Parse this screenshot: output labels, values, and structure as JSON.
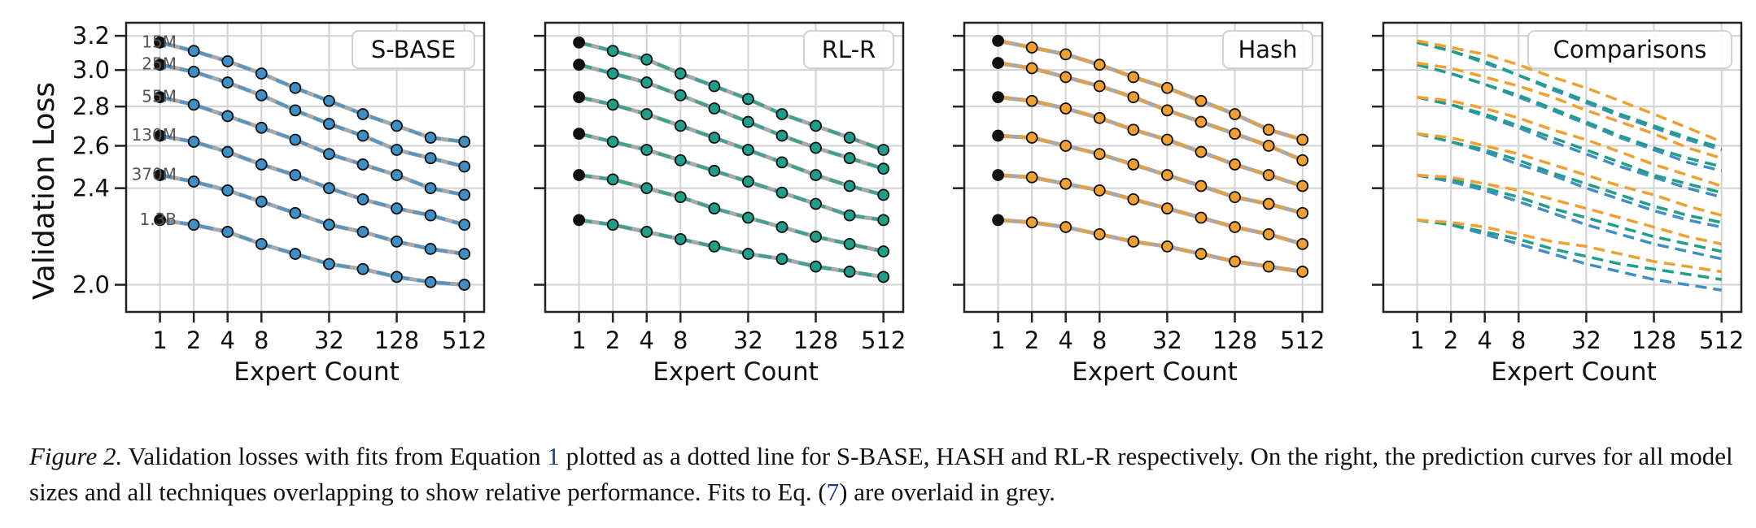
{
  "figure": {
    "ylabel": "Validation Loss",
    "xlabel": "Expert Count",
    "ytick_labels": [
      "2.0",
      "2.4",
      "2.6",
      "2.8",
      "3.0",
      "3.2"
    ],
    "xtick_labels": [
      "1",
      "2",
      "4",
      "8",
      "32",
      "128",
      "512"
    ],
    "size_labels": [
      "15M",
      "25M",
      "55M",
      "130M",
      "370M",
      "1.3B"
    ]
  },
  "chart_data": {
    "type": "line",
    "x_scale": "log2",
    "y_scale": "log",
    "xlim": [
      0.5,
      768
    ],
    "ylim": [
      1.9,
      3.28
    ],
    "x": [
      1,
      2,
      4,
      8,
      16,
      32,
      64,
      128,
      256,
      512
    ],
    "yticks": [
      2.0,
      2.4,
      2.6,
      2.8,
      3.0,
      3.2
    ],
    "xticks": [
      1,
      2,
      4,
      8,
      32,
      128,
      512
    ],
    "grid": true,
    "model_sizes": [
      "15M",
      "25M",
      "55M",
      "130M",
      "370M",
      "1.3B"
    ],
    "colors": {
      "S-BASE": "#3f8fc4",
      "RL-R": "#1f9e89",
      "Hash": "#f0a030",
      "fit_grey": "#a0a0a0",
      "dense_point": "#111111"
    },
    "panels": [
      {
        "name": "S-BASE",
        "series": [
          {
            "name": "15M",
            "values": [
              3.16,
              3.11,
              3.05,
              2.98,
              2.9,
              2.83,
              2.76,
              2.7,
              2.64,
              2.62
            ]
          },
          {
            "name": "25M",
            "values": [
              3.03,
              2.99,
              2.93,
              2.86,
              2.78,
              2.71,
              2.65,
              2.58,
              2.54,
              2.5
            ]
          },
          {
            "name": "55M",
            "values": [
              2.85,
              2.81,
              2.75,
              2.69,
              2.63,
              2.56,
              2.51,
              2.46,
              2.4,
              2.37
            ]
          },
          {
            "name": "130M",
            "values": [
              2.65,
              2.62,
              2.57,
              2.51,
              2.46,
              2.4,
              2.35,
              2.31,
              2.28,
              2.24
            ]
          },
          {
            "name": "370M",
            "values": [
              2.46,
              2.43,
              2.39,
              2.34,
              2.29,
              2.24,
              2.21,
              2.17,
              2.14,
              2.12
            ]
          },
          {
            "name": "1.3B",
            "values": [
              2.26,
              2.24,
              2.21,
              2.16,
              2.12,
              2.08,
              2.06,
              2.03,
              2.01,
              2.0
            ]
          }
        ]
      },
      {
        "name": "RL-R",
        "series": [
          {
            "name": "15M",
            "values": [
              3.16,
              3.11,
              3.06,
              2.98,
              2.91,
              2.84,
              2.76,
              2.7,
              2.64,
              2.58
            ]
          },
          {
            "name": "25M",
            "values": [
              3.03,
              2.98,
              2.93,
              2.86,
              2.79,
              2.72,
              2.65,
              2.59,
              2.54,
              2.49
            ]
          },
          {
            "name": "55M",
            "values": [
              2.85,
              2.81,
              2.76,
              2.7,
              2.64,
              2.58,
              2.52,
              2.46,
              2.41,
              2.37
            ]
          },
          {
            "name": "130M",
            "values": [
              2.66,
              2.62,
              2.58,
              2.53,
              2.48,
              2.43,
              2.38,
              2.33,
              2.28,
              2.26
            ]
          },
          {
            "name": "370M",
            "values": [
              2.46,
              2.44,
              2.4,
              2.36,
              2.31,
              2.27,
              2.23,
              2.19,
              2.16,
              2.13
            ]
          },
          {
            "name": "1.3B",
            "values": [
              2.26,
              2.24,
              2.21,
              2.18,
              2.15,
              2.12,
              2.1,
              2.07,
              2.05,
              2.03
            ]
          }
        ]
      },
      {
        "name": "Hash",
        "series": [
          {
            "name": "15M",
            "values": [
              3.17,
              3.13,
              3.09,
              3.03,
              2.96,
              2.9,
              2.83,
              2.76,
              2.68,
              2.63
            ]
          },
          {
            "name": "25M",
            "values": [
              3.04,
              3.01,
              2.96,
              2.91,
              2.85,
              2.78,
              2.72,
              2.66,
              2.6,
              2.53
            ]
          },
          {
            "name": "55M",
            "values": [
              2.85,
              2.83,
              2.79,
              2.74,
              2.68,
              2.63,
              2.57,
              2.51,
              2.46,
              2.41
            ]
          },
          {
            "name": "130M",
            "values": [
              2.65,
              2.64,
              2.6,
              2.56,
              2.51,
              2.46,
              2.41,
              2.36,
              2.33,
              2.29
            ]
          },
          {
            "name": "370M",
            "values": [
              2.46,
              2.45,
              2.42,
              2.39,
              2.35,
              2.31,
              2.27,
              2.23,
              2.2,
              2.16
            ]
          },
          {
            "name": "1.3B",
            "values": [
              2.26,
              2.25,
              2.23,
              2.2,
              2.17,
              2.15,
              2.12,
              2.09,
              2.07,
              2.05
            ]
          }
        ]
      },
      {
        "name": "Comparisons",
        "series": [
          {
            "name": "S-BASE",
            "fits": [
              [
                3.16,
                3.11,
                3.04,
                2.97,
                2.89,
                2.82,
                2.75,
                2.69,
                2.63,
                2.58
              ],
              [
                3.03,
                2.98,
                2.92,
                2.85,
                2.78,
                2.71,
                2.64,
                2.58,
                2.52,
                2.48
              ],
              [
                2.85,
                2.81,
                2.75,
                2.69,
                2.62,
                2.56,
                2.5,
                2.45,
                2.4,
                2.36
              ],
              [
                2.66,
                2.62,
                2.57,
                2.51,
                2.46,
                2.4,
                2.35,
                2.3,
                2.26,
                2.23
              ],
              [
                2.46,
                2.43,
                2.39,
                2.34,
                2.29,
                2.24,
                2.2,
                2.16,
                2.13,
                2.1
              ],
              [
                2.26,
                2.24,
                2.2,
                2.16,
                2.12,
                2.08,
                2.05,
                2.02,
                2.0,
                1.98
              ]
            ]
          },
          {
            "name": "RL-R",
            "fits": [
              [
                3.16,
                3.11,
                3.05,
                2.97,
                2.9,
                2.83,
                2.76,
                2.7,
                2.64,
                2.59
              ],
              [
                3.03,
                2.98,
                2.92,
                2.86,
                2.79,
                2.72,
                2.65,
                2.59,
                2.54,
                2.5
              ],
              [
                2.85,
                2.81,
                2.76,
                2.7,
                2.64,
                2.58,
                2.52,
                2.46,
                2.42,
                2.38
              ],
              [
                2.66,
                2.62,
                2.58,
                2.53,
                2.47,
                2.42,
                2.37,
                2.32,
                2.28,
                2.25
              ],
              [
                2.46,
                2.44,
                2.4,
                2.36,
                2.31,
                2.27,
                2.23,
                2.19,
                2.16,
                2.13
              ],
              [
                2.26,
                2.24,
                2.21,
                2.18,
                2.14,
                2.11,
                2.08,
                2.06,
                2.04,
                2.02
              ]
            ]
          },
          {
            "name": "Hash",
            "fits": [
              [
                3.17,
                3.13,
                3.09,
                3.03,
                2.96,
                2.9,
                2.83,
                2.76,
                2.69,
                2.62
              ],
              [
                3.04,
                3.01,
                2.96,
                2.91,
                2.85,
                2.78,
                2.72,
                2.66,
                2.59,
                2.54
              ],
              [
                2.85,
                2.83,
                2.79,
                2.74,
                2.68,
                2.63,
                2.57,
                2.51,
                2.46,
                2.41
              ],
              [
                2.66,
                2.64,
                2.6,
                2.56,
                2.51,
                2.46,
                2.41,
                2.37,
                2.32,
                2.28
              ],
              [
                2.46,
                2.45,
                2.42,
                2.39,
                2.35,
                2.31,
                2.27,
                2.23,
                2.19,
                2.16
              ],
              [
                2.26,
                2.25,
                2.23,
                2.2,
                2.17,
                2.15,
                2.12,
                2.09,
                2.07,
                2.05
              ]
            ]
          }
        ]
      }
    ]
  },
  "caption": {
    "lead": "Figure 2.",
    "part1": " Validation losses with fits from Equation ",
    "eq1": "1",
    "part2": " plotted as a dotted line for ",
    "sbase": "S-BASE",
    "sep1": ", ",
    "hash": "HASH",
    "and": " and ",
    "rlr": "RL-R",
    "part3": " respectively. On the right, the prediction curves for all model sizes and all techniques overlapping to show relative performance. Fits to Eq. (",
    "eq7": "7",
    "part4": ") are overlaid in grey."
  }
}
